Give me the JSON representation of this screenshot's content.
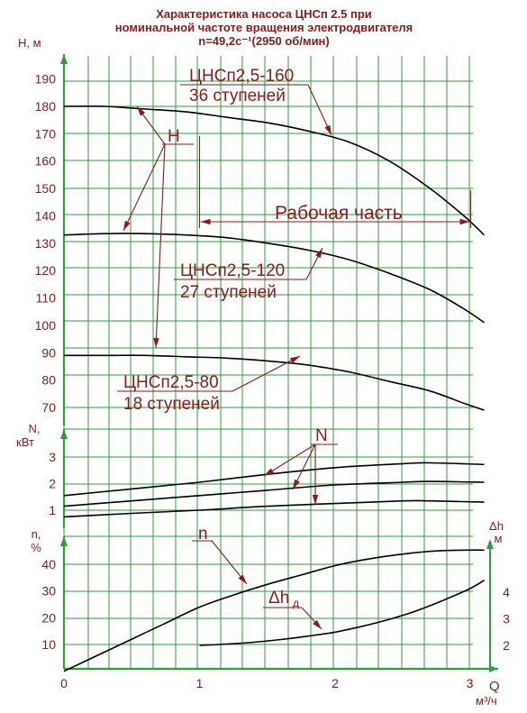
{
  "title_lines": [
    "Характеристика насоса  ЦНСп 2.5 при",
    "номинальной частоте вращения электродвигателя",
    "n=49,2с⁻¹(2950 об/мин)"
  ],
  "colors": {
    "grid": "#2e9e3a",
    "text": "#8b1a1a",
    "curve": "#000000"
  },
  "chart_data": {
    "type": "line",
    "x": {
      "label_q": "Q",
      "unit": "м³/ч",
      "range": [
        0,
        3.15
      ],
      "ticks": [
        "0",
        "1",
        "2",
        "3"
      ]
    },
    "panels": [
      {
        "id": "H",
        "ylabel": "H, м",
        "range": [
          60,
          200
        ],
        "tick_values": [
          70,
          80,
          90,
          100,
          110,
          120,
          130,
          140,
          150,
          160,
          170,
          180,
          190
        ],
        "tick_labels": [
          "70",
          "80",
          "90",
          "100",
          "110",
          "120",
          "130",
          "140",
          "150",
          "160",
          "170",
          "180",
          "190"
        ],
        "series": [
          {
            "name": "ЦНСп2,5-160 / 36 ступеней",
            "x": [
              0,
              0.3,
              0.6,
              0.9,
              1.2,
              1.5,
              1.8,
              2.1,
              2.4,
              2.7,
              2.95,
              3.1
            ],
            "y": [
              180,
              180,
              179,
              178,
              176,
              174,
              171,
              167,
              160,
              150,
              140,
              133
            ]
          },
          {
            "name": "ЦНСп2,5-120 / 27 ступеней",
            "x": [
              0,
              0.3,
              0.6,
              0.9,
              1.2,
              1.5,
              1.8,
              2.1,
              2.4,
              2.7,
              2.95,
              3.1
            ],
            "y": [
              133,
              133.5,
              133.5,
              133,
              132,
              130,
              127.5,
              124,
              119,
              113,
              106,
              101
            ]
          },
          {
            "name": "ЦНСп2,5-80 / 18 ступеней",
            "x": [
              0,
              0.3,
              0.6,
              0.9,
              1.2,
              1.5,
              1.8,
              2.1,
              2.4,
              2.7,
              2.95,
              3.1
            ],
            "y": [
              89,
              89,
              89,
              88.5,
              88,
              87,
              85.5,
              83,
              79.5,
              76,
              71.5,
              69
            ]
          }
        ]
      },
      {
        "id": "N",
        "ylabel_lines": [
          "N,",
          "кВт"
        ],
        "range": [
          0.5,
          3.7
        ],
        "tick_values": [
          1,
          2,
          3
        ],
        "tick_labels": [
          "1",
          "2",
          "3"
        ],
        "series": [
          {
            "name": "ЦНСп2,5-160",
            "x": [
              0,
              0.5,
              1,
              1.5,
              2,
              2.5,
              2.7,
              3.1
            ],
            "y": [
              1.55,
              1.8,
              2.05,
              2.35,
              2.6,
              2.75,
              2.78,
              2.72
            ]
          },
          {
            "name": "ЦНСп2,5-120",
            "x": [
              0,
              0.5,
              1,
              1.5,
              2,
              2.5,
              2.7,
              3.1
            ],
            "y": [
              1.15,
              1.35,
              1.55,
              1.75,
              1.95,
              2.05,
              2.08,
              2.05
            ]
          },
          {
            "name": "ЦНСп2,5-80",
            "x": [
              0,
              0.5,
              1,
              1.5,
              2,
              2.5,
              2.7,
              3.1
            ],
            "y": [
              0.75,
              0.88,
              1.0,
              1.15,
              1.25,
              1.35,
              1.35,
              1.3
            ]
          }
        ]
      },
      {
        "id": "eff",
        "ylabel_lines": [
          "n,",
          "%"
        ],
        "range": [
          0,
          50
        ],
        "tick_values": [
          10,
          20,
          30,
          40
        ],
        "tick_labels": [
          "10",
          "20",
          "30",
          "40"
        ],
        "right_axis": {
          "label_lines": [
            "Δh",
            "м"
          ],
          "range": [
            0.95,
            5.45
          ],
          "tick_values": [
            2,
            3,
            4
          ],
          "tick_labels": [
            "2",
            "3",
            "4"
          ]
        },
        "series": [
          {
            "name": "n",
            "axis": "left",
            "x": [
              0,
              0.25,
              0.5,
              0.75,
              1,
              1.25,
              1.5,
              1.75,
              2,
              2.25,
              2.5,
              2.75,
              3,
              3.1
            ],
            "y": [
              0,
              6,
              12,
              18,
              24,
              28.5,
              32.5,
              36,
              39.5,
              42,
              43.8,
              45,
              45.3,
              45.3
            ]
          },
          {
            "name": "Δhд",
            "axis": "right",
            "x": [
              1,
              1.2,
              1.4,
              1.6,
              1.8,
              2,
              2.2,
              2.4,
              2.6,
              2.8,
              3,
              3.1
            ],
            "y": [
              2,
              2.05,
              2.12,
              2.22,
              2.35,
              2.5,
              2.72,
              2.98,
              3.3,
              3.7,
              4.15,
              4.45
            ]
          }
        ]
      }
    ],
    "annotations": {
      "curve_labels": [
        {
          "line1": "ЦНСп2,5-160",
          "line2": "36 ступеней"
        },
        {
          "line1": "ЦНСп2,5-120",
          "line2": "27 ступеней"
        },
        {
          "line1": "ЦНСп2,5-80",
          "line2": "18 ступеней"
        }
      ],
      "H_marker": "H",
      "N_marker": "N",
      "n_marker": "n",
      "dh_marker": "Δh",
      "dh_subscript": "д",
      "working_range": {
        "label": "Рабочая часть",
        "x_from": 1.0,
        "x_to": 3.0
      }
    }
  }
}
